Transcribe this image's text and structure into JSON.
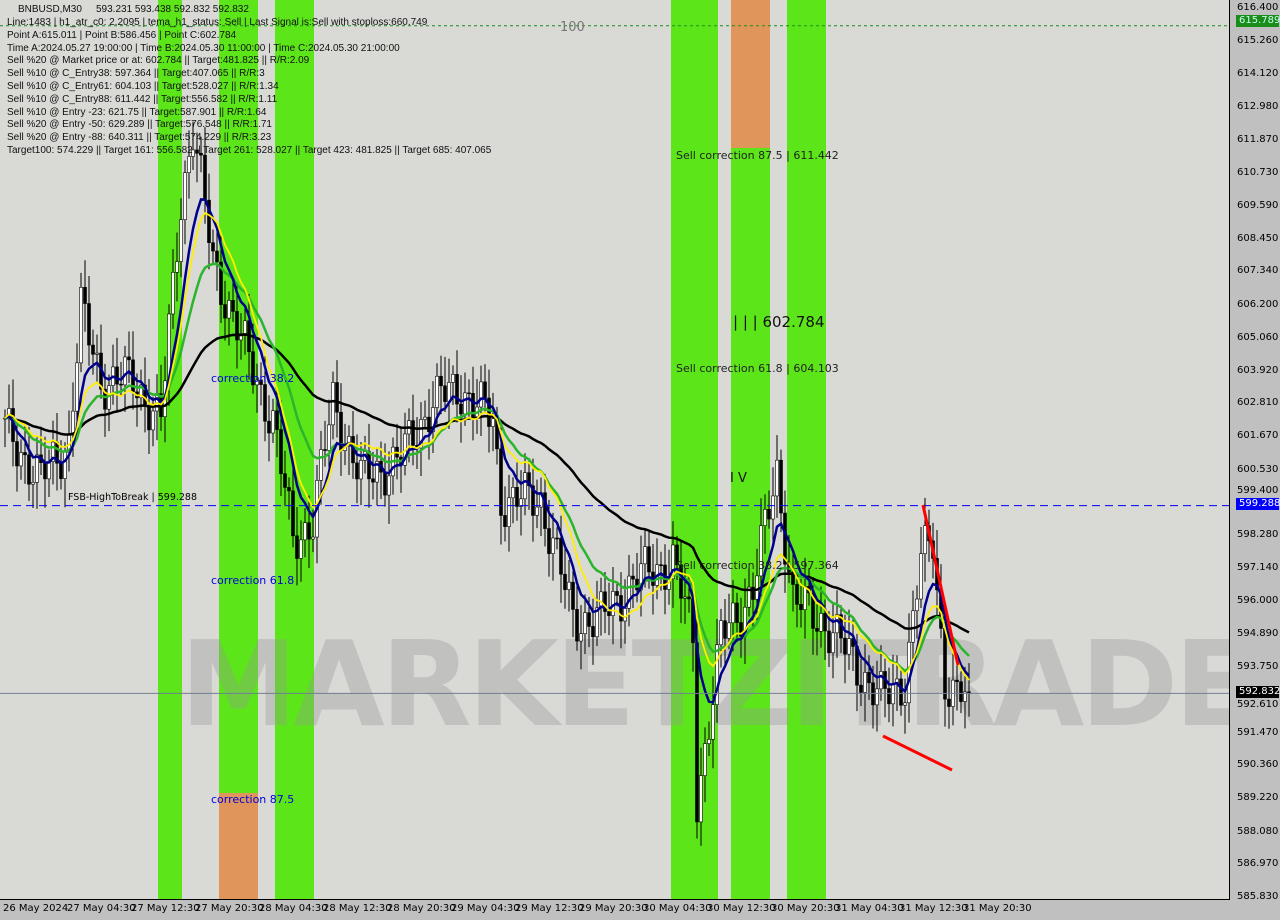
{
  "header": {
    "symbol": "BNBUSD,M30",
    "ohlc": "593.231 593.438 592.832 592.832"
  },
  "info_lines": [
    "Line:1483 | h1_atr_c0: 2.2095 | tema_h1_status: Sell | Last Signal is:Sell with stoploss:660.749",
    "Point A:615.011 | Point B:586.456 | Point C:602.784",
    "Time A:2024.05.27 19:00:00 | Time B:2024.05.30 11:00:00 | Time C:2024.05.30 21:00:00",
    "Sell %20 @ Market price or at: 602.784 || Target:481.825 || R/R:2.09",
    "Sell %10 @ C_Entry38: 597.364 || Target:407.065 || R/R:3",
    "Sell %10 @ C_Entry61: 604.103 || Target:528.027 || R/R:1.34",
    "Sell %10 @ C_Entry88: 611.442 || Target:556.582 || R/R:1.11",
    "Sell %10 @ Entry -23: 621.75 || Target:587.901 || R/R:1.64",
    "Sell %20 @ Entry -50: 629.289 || Target:576.548 || R/R:1.71",
    "Sell %20 @ Entry -88: 640.311 || Target:574.229 || R/R:3.23",
    "Target100: 574.229 || Target 161: 556.582 || Target 261: 528.027 || Target 423: 481.825 || Target 685: 407.065"
  ],
  "annotations": {
    "fsb": "FSB-HighToBreak | 599.288",
    "sell875": "Sell correction 87.5 | 611.442",
    "pointc": "| | | 602.784",
    "sell618": "Sell correction 61.8 | 604.103",
    "sell382": "Sell correction 38.2 | 597.364",
    "c382": "correction 38.2",
    "c618": "correction 61.8",
    "c875": "correction 87.5",
    "iv": "I V",
    "hundred": "100"
  },
  "watermark": "MARKETZITRADE",
  "price_tags": {
    "stoploss_line": "615.789",
    "fsb_line": "599.288",
    "last_price": "592.832"
  },
  "colors": {
    "green_zone": "#5ce61a",
    "orange_zone": "#e0965a",
    "fsb": "#0000ff",
    "last": "#000000",
    "stop": "#1a8c1a"
  },
  "chart_data": {
    "type": "candlestick",
    "symbol": "BNBUSD",
    "timeframe": "M30",
    "ylim": [
      585.83,
      616.4
    ],
    "y_ticks": [
      "616.400",
      "615.260",
      "614.120",
      "612.980",
      "611.870",
      "610.730",
      "609.590",
      "608.450",
      "607.340",
      "606.200",
      "605.060",
      "603.920",
      "602.810",
      "601.670",
      "600.530",
      "599.400",
      "598.280",
      "597.140",
      "596.000",
      "594.890",
      "593.750",
      "592.610",
      "591.470",
      "590.360",
      "589.220",
      "588.080",
      "586.970",
      "585.830"
    ],
    "x_ticks": [
      "26 May 2024",
      "27 May 04:30",
      "27 May 12:30",
      "27 May 20:30",
      "28 May 04:30",
      "28 May 12:30",
      "28 May 20:30",
      "29 May 04:30",
      "29 May 12:30",
      "29 May 20:30",
      "30 May 04:30",
      "30 May 12:30",
      "30 May 20:30",
      "31 May 04:30",
      "31 May 12:30",
      "31 May 20:30"
    ],
    "approx_close_path": [
      [
        0,
        601.9
      ],
      [
        9,
        600.2
      ],
      [
        16,
        601.5
      ],
      [
        19,
        606.0
      ],
      [
        24,
        603.6
      ],
      [
        32,
        603.6
      ],
      [
        39,
        602.2
      ],
      [
        44,
        609.8
      ],
      [
        47,
        612.2
      ],
      [
        52,
        607.7
      ],
      [
        59,
        605.0
      ],
      [
        67,
        602.2
      ],
      [
        72,
        598.1
      ],
      [
        77,
        598.8
      ],
      [
        82,
        602.9
      ],
      [
        89,
        600.2
      ],
      [
        99,
        600.9
      ],
      [
        107,
        602.9
      ],
      [
        114,
        603.3
      ],
      [
        122,
        602.2
      ],
      [
        124,
        599.5
      ],
      [
        134,
        599.5
      ],
      [
        142,
        595.4
      ],
      [
        149,
        595.4
      ],
      [
        157,
        596.7
      ],
      [
        167,
        597.4
      ],
      [
        172,
        594.7
      ],
      [
        173,
        589.2
      ],
      [
        176,
        591.9
      ],
      [
        179,
        594.7
      ],
      [
        187,
        596.4
      ],
      [
        193,
        600.5
      ],
      [
        197,
        596.0
      ],
      [
        204,
        595.4
      ],
      [
        212,
        594.0
      ],
      [
        219,
        592.6
      ],
      [
        225,
        593.3
      ],
      [
        229,
        597.4
      ],
      [
        232,
        598.1
      ],
      [
        235,
        593.3
      ],
      [
        238,
        592.6
      ],
      [
        241,
        592.832
      ]
    ]
  }
}
